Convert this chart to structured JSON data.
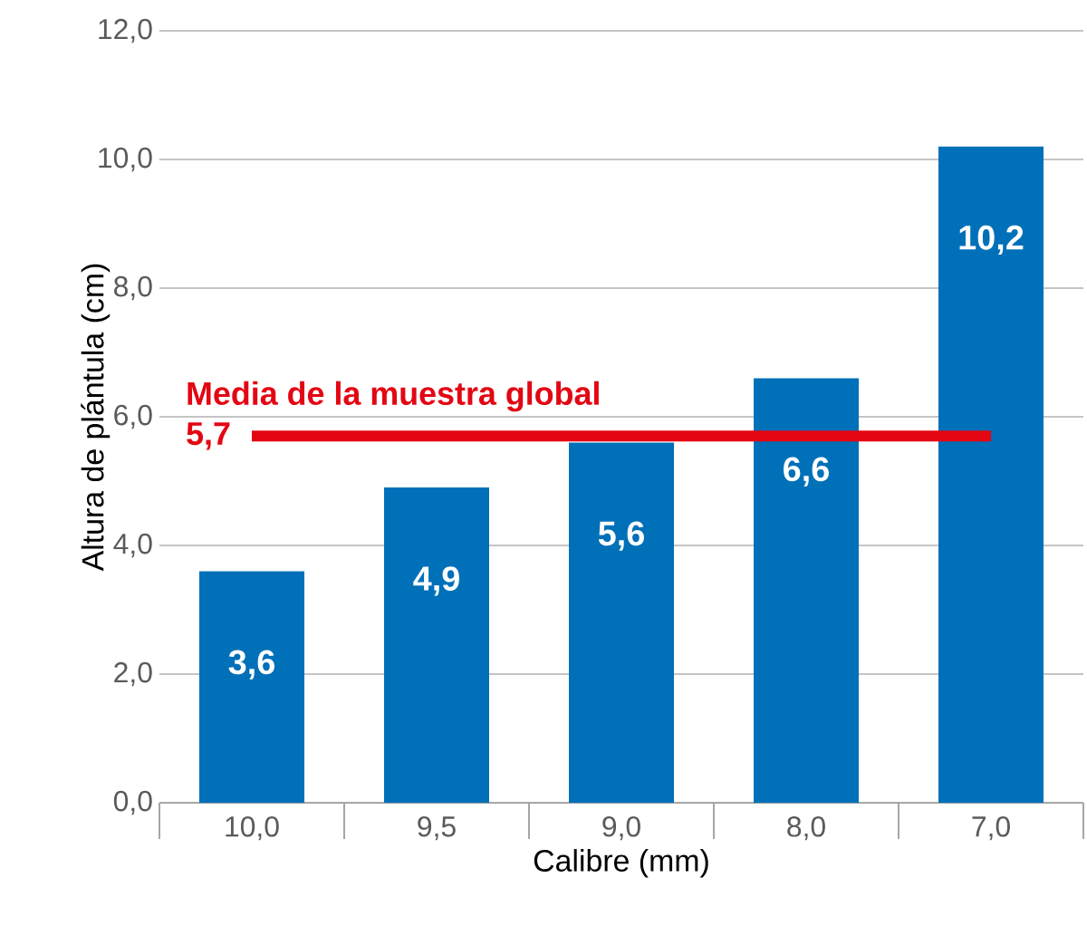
{
  "chart_data": {
    "type": "bar",
    "xlabel": "Calibre (mm)",
    "ylabel": "Altura de plántula (cm)",
    "categories": [
      "10,0",
      "9,5",
      "9,0",
      "8,0",
      "7,0"
    ],
    "values": [
      3.6,
      4.9,
      5.6,
      6.6,
      10.2
    ],
    "value_labels": [
      "3,6",
      "4,9",
      "5,6",
      "6,6",
      "10,2"
    ],
    "color": "#0070b8",
    "ylim": [
      0,
      12
    ],
    "yticks": [
      {
        "value": 0,
        "label": "0,0"
      },
      {
        "value": 2,
        "label": "2,0"
      },
      {
        "value": 4,
        "label": "4,0"
      },
      {
        "value": 6,
        "label": "6,0"
      },
      {
        "value": 8,
        "label": "8,0"
      },
      {
        "value": 10,
        "label": "10,0"
      },
      {
        "value": 12,
        "label": "12,0"
      }
    ],
    "grid": "y",
    "ref_lines": [
      {
        "axis": "y",
        "value": 5.7,
        "label": "Media de la muestra global",
        "color": "#e30613"
      }
    ],
    "annotations": [
      "5,7"
    ]
  }
}
